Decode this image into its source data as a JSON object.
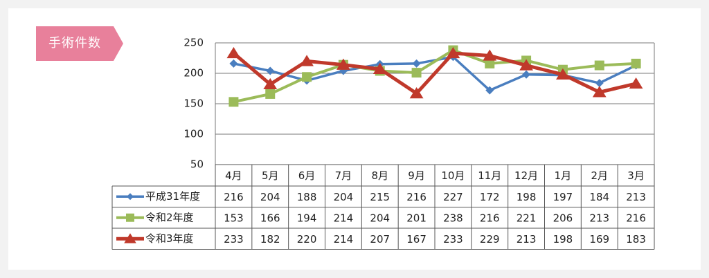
{
  "tag": {
    "label": "手術件数",
    "color": "#e8809b"
  },
  "chart_data": {
    "type": "line",
    "categories": [
      "4月",
      "5月",
      "6月",
      "7月",
      "8月",
      "9月",
      "10月",
      "11月",
      "12月",
      "1月",
      "2月",
      "3月"
    ],
    "ylim": [
      50,
      250
    ],
    "yticks": [
      50,
      100,
      150,
      200,
      250
    ],
    "grid": true,
    "series": [
      {
        "name": "平成31年度",
        "color": "#4a7ebf",
        "marker": "diamond",
        "values": [
          216,
          204,
          188,
          204,
          215,
          216,
          227,
          172,
          198,
          197,
          184,
          213
        ]
      },
      {
        "name": "令和2年度",
        "color": "#9bbb59",
        "marker": "square",
        "values": [
          153,
          166,
          194,
          214,
          204,
          201,
          238,
          216,
          221,
          206,
          213,
          216
        ]
      },
      {
        "name": "令和3年度",
        "color": "#c0392b",
        "marker": "triangle",
        "values": [
          233,
          182,
          220,
          214,
          207,
          167,
          233,
          229,
          213,
          198,
          169,
          183
        ]
      }
    ]
  }
}
